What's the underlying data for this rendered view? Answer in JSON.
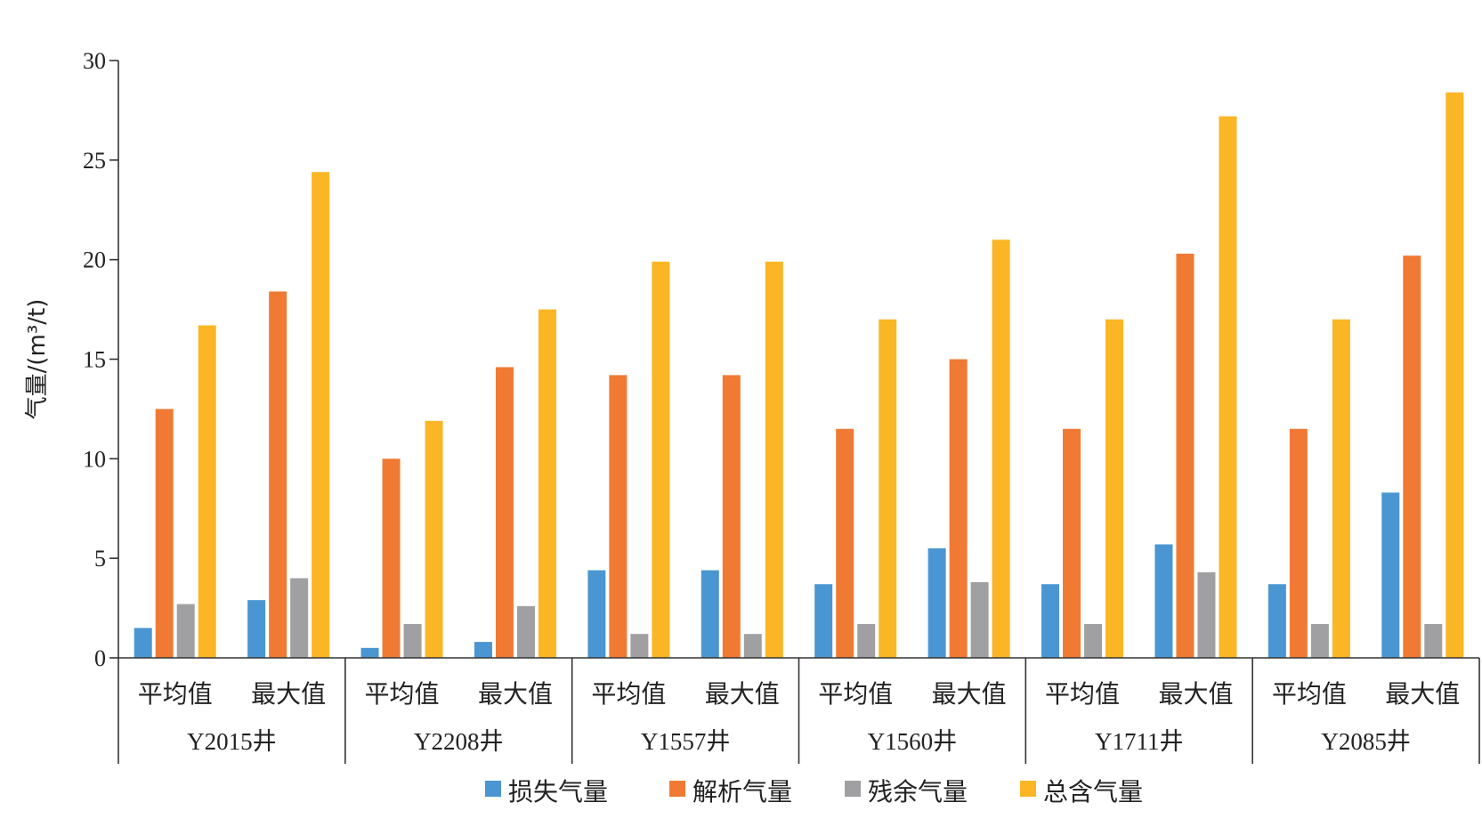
{
  "chart_data": {
    "type": "bar",
    "ylabel": "气量/(m³/t)",
    "ylim": [
      0,
      30
    ],
    "yticks": [
      0,
      5,
      10,
      15,
      20,
      25,
      30
    ],
    "groups": [
      {
        "well": "Y2015井",
        "categories": [
          "平均值",
          "最大值"
        ]
      },
      {
        "well": "Y2208井",
        "categories": [
          "平均值",
          "最大值"
        ]
      },
      {
        "well": "Y1557井",
        "categories": [
          "平均值",
          "最大值"
        ]
      },
      {
        "well": "Y1560井",
        "categories": [
          "平均值",
          "最大值"
        ]
      },
      {
        "well": "Y1711井",
        "categories": [
          "平均值",
          "最大值"
        ]
      },
      {
        "well": "Y2085井",
        "categories": [
          "平均值",
          "最大值"
        ]
      }
    ],
    "series": [
      {
        "name": "损失气量",
        "color": "#4a96d2",
        "values": [
          1.5,
          2.9,
          0.5,
          0.8,
          4.4,
          4.4,
          3.7,
          5.5,
          3.7,
          5.7,
          3.7,
          8.3
        ]
      },
      {
        "name": "解析气量",
        "color": "#f07a33",
        "values": [
          12.5,
          18.4,
          10.0,
          14.6,
          14.2,
          14.2,
          11.5,
          15.0,
          11.5,
          20.3,
          11.5,
          20.2
        ]
      },
      {
        "name": "残余气量",
        "color": "#a0a0a2",
        "values": [
          2.7,
          4.0,
          1.7,
          2.6,
          1.2,
          1.2,
          1.7,
          3.8,
          1.7,
          4.3,
          1.7,
          1.7
        ]
      },
      {
        "name": "总含气量",
        "color": "#fbb625",
        "values": [
          16.7,
          24.4,
          11.9,
          17.5,
          19.9,
          19.9,
          17.0,
          21.0,
          17.0,
          27.2,
          17.0,
          28.4
        ]
      }
    ],
    "grid": false,
    "legend": "bottom-center"
  }
}
